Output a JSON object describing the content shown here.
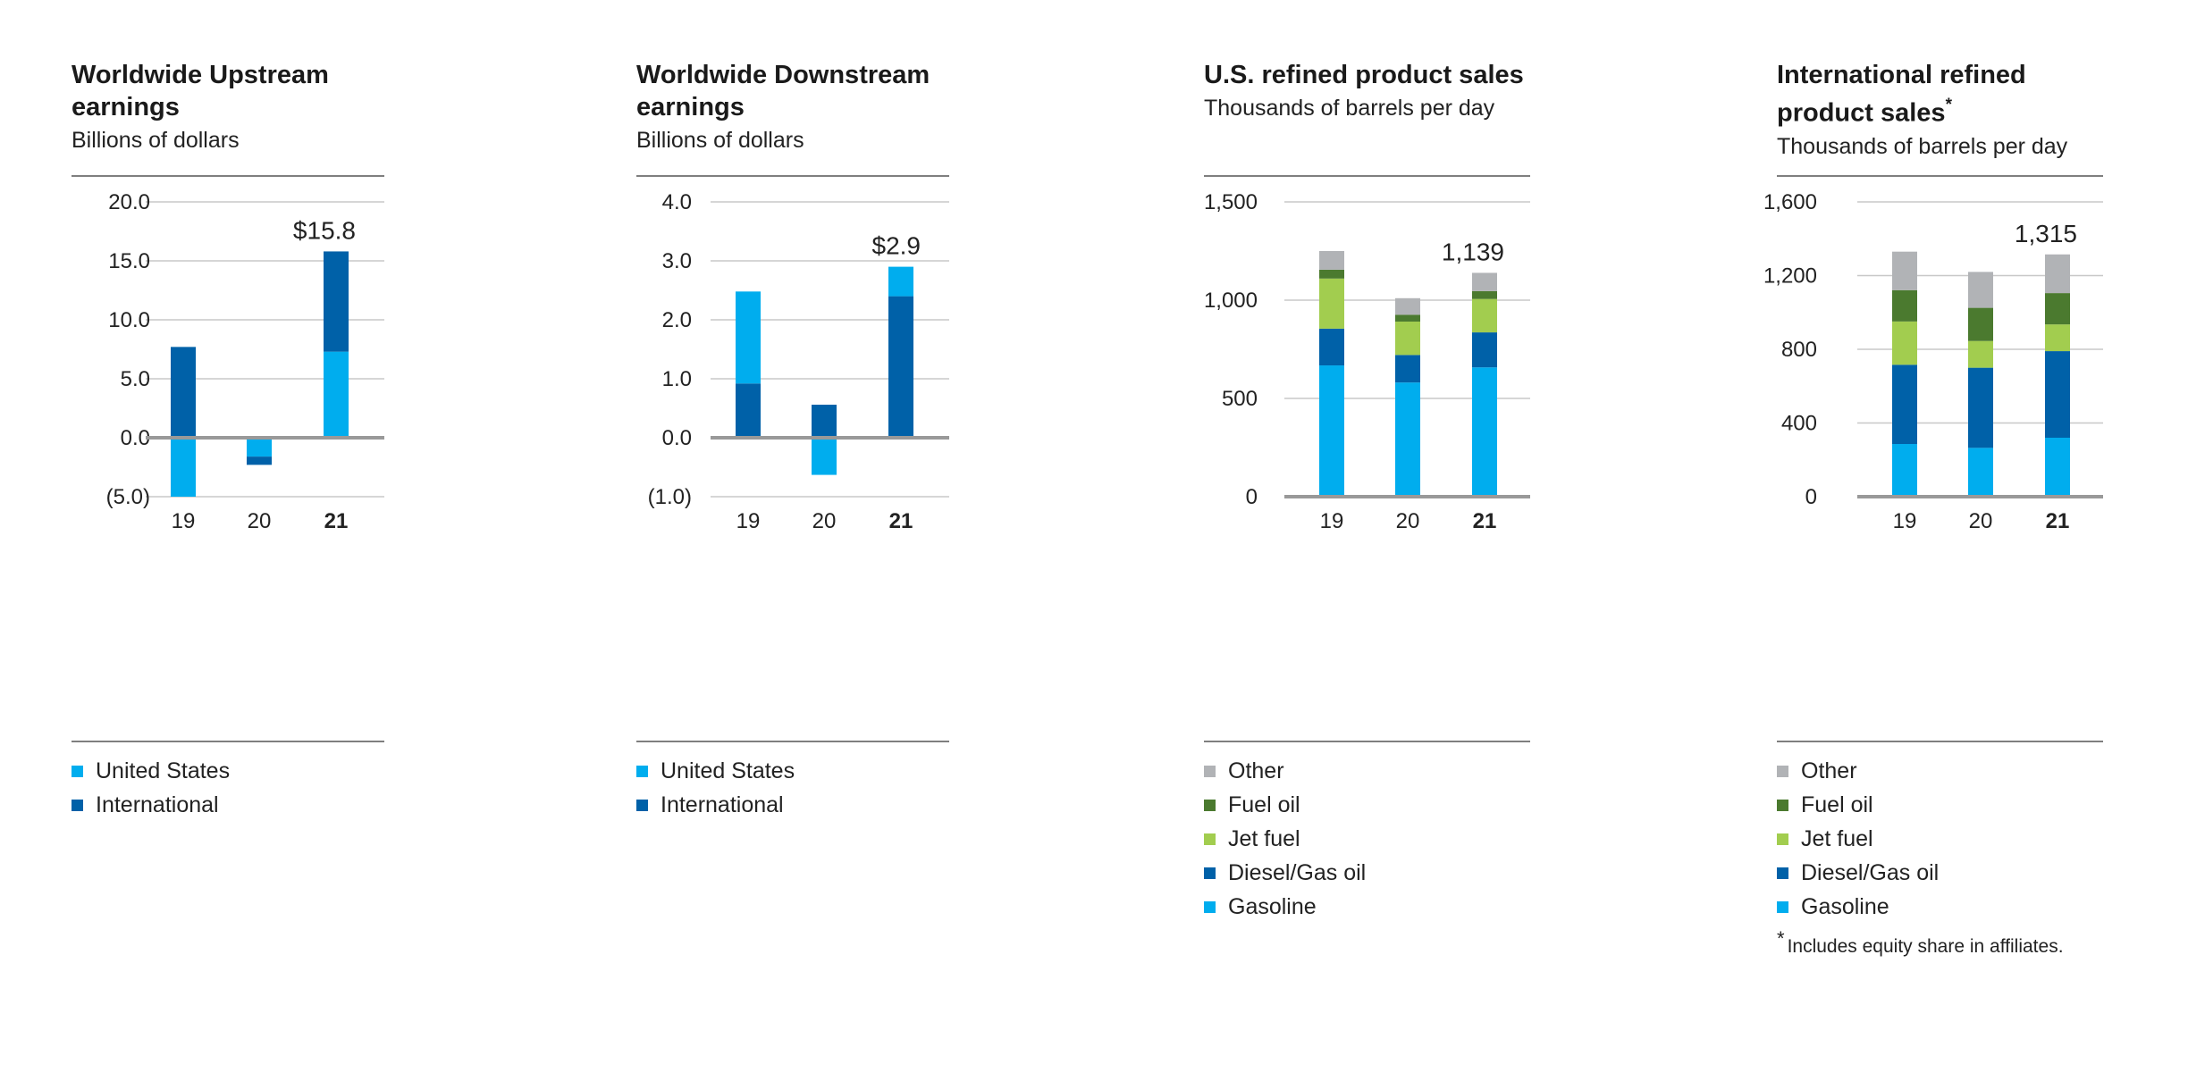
{
  "colors": {
    "united_states": "#00adee",
    "international": "#0061a8",
    "gasoline": "#00adee",
    "diesel_gas_oil": "#0061a8",
    "jet_fuel": "#a2cd4f",
    "fuel_oil": "#4b7a2f",
    "other": "#b1b3b6"
  },
  "chart_data": [
    {
      "type": "bar",
      "stacked": true,
      "title": "Worldwide Upstream earnings",
      "subtitle": "Billions of dollars",
      "categories": [
        "19",
        "20",
        "21"
      ],
      "series": [
        {
          "name": "United States",
          "color_key": "united_states",
          "values": [
            -5.0,
            -1.6,
            7.3
          ]
        },
        {
          "name": "International",
          "color_key": "international",
          "values": [
            7.7,
            -0.7,
            8.5
          ]
        }
      ],
      "ylim": [
        -5.0,
        20.0
      ],
      "yticks": [
        -5.0,
        0.0,
        5.0,
        10.0,
        15.0,
        20.0
      ],
      "ytick_labels": [
        "(5.0)",
        "0.0",
        "5.0",
        "10.0",
        "15.0",
        "20.0"
      ],
      "annotation": {
        "category": "21",
        "total": 15.8,
        "label": "$15.8"
      },
      "legend": [
        "United States",
        "International"
      ]
    },
    {
      "type": "bar",
      "stacked": true,
      "title": "Worldwide Downstream earnings",
      "subtitle": "Billions of dollars",
      "categories": [
        "19",
        "20",
        "21"
      ],
      "series": [
        {
          "name": "International",
          "color_key": "international",
          "values": [
            0.92,
            0.56,
            2.4
          ]
        },
        {
          "name": "United States",
          "color_key": "united_states",
          "values": [
            1.56,
            -0.63,
            0.5
          ]
        }
      ],
      "ylim": [
        -1.0,
        4.0
      ],
      "yticks": [
        -1.0,
        0.0,
        1.0,
        2.0,
        3.0,
        4.0
      ],
      "ytick_labels": [
        "(1.0)",
        "0.0",
        "1.0",
        "2.0",
        "3.0",
        "4.0"
      ],
      "annotation": {
        "category": "21",
        "total": 2.9,
        "label": "$2.9"
      },
      "legend": [
        "United States",
        "International"
      ]
    },
    {
      "type": "bar",
      "stacked": true,
      "title": "U.S. refined product sales",
      "subtitle": "Thousands of barrels per day",
      "categories": [
        "19",
        "20",
        "21"
      ],
      "series": [
        {
          "name": "Gasoline",
          "color_key": "gasoline",
          "values": [
            668,
            581,
            658
          ]
        },
        {
          "name": "Diesel/Gas oil",
          "color_key": "diesel_gas_oil",
          "values": [
            187,
            140,
            178
          ]
        },
        {
          "name": "Jet fuel",
          "color_key": "jet_fuel",
          "values": [
            255,
            170,
            170
          ]
        },
        {
          "name": "Fuel oil",
          "color_key": "fuel_oil",
          "values": [
            45,
            35,
            40
          ]
        },
        {
          "name": "Other",
          "color_key": "other",
          "values": [
            95,
            84,
            93
          ]
        }
      ],
      "ylim": [
        0,
        1500
      ],
      "yticks": [
        0,
        500,
        1000,
        1500
      ],
      "ytick_labels": [
        "0",
        "500",
        "1,000",
        "1,500"
      ],
      "annotation": {
        "category": "21",
        "total": 1139,
        "label": "1,139"
      },
      "legend": [
        "Other",
        "Fuel oil",
        "Jet fuel",
        "Diesel/Gas oil",
        "Gasoline"
      ]
    },
    {
      "type": "bar",
      "stacked": true,
      "title": "International refined product sales*",
      "subtitle": "Thousands of barrels per day",
      "categories": [
        "19",
        "20",
        "21"
      ],
      "series": [
        {
          "name": "Gasoline",
          "color_key": "gasoline",
          "values": [
            286,
            265,
            320
          ]
        },
        {
          "name": "Diesel/Gas oil",
          "color_key": "diesel_gas_oil",
          "values": [
            430,
            435,
            470
          ]
        },
        {
          "name": "Jet fuel",
          "color_key": "jet_fuel",
          "values": [
            235,
            145,
            145
          ]
        },
        {
          "name": "Fuel oil",
          "color_key": "fuel_oil",
          "values": [
            170,
            180,
            170
          ]
        },
        {
          "name": "Other",
          "color_key": "other",
          "values": [
            209,
            195,
            210
          ]
        }
      ],
      "ylim": [
        0,
        1600
      ],
      "yticks": [
        0,
        400,
        800,
        1200,
        1600
      ],
      "ytick_labels": [
        "0",
        "400",
        "800",
        "1,200",
        "1,600"
      ],
      "annotation": {
        "category": "21",
        "total": 1315,
        "label": "1,315"
      },
      "legend": [
        "Other",
        "Fuel oil",
        "Jet fuel",
        "Diesel/Gas oil",
        "Gasoline"
      ]
    }
  ],
  "panels": [
    {
      "title_line1": "Worldwide Upstream",
      "title_line2": "earnings",
      "subtitle": "Billions of dollars"
    },
    {
      "title_line1": "Worldwide Downstream",
      "title_line2": "earnings",
      "subtitle": "Billions of dollars"
    },
    {
      "title_line1": "U.S. refined product sales",
      "title_line2": "",
      "subtitle": "Thousands of barrels per day"
    },
    {
      "title_line1": "International refined",
      "title_line2": "product sales",
      "title_mark": "*",
      "subtitle": "Thousands of barrels per day"
    }
  ],
  "footnote": {
    "mark": "*",
    "text": "Includes equity share in affiliates."
  }
}
